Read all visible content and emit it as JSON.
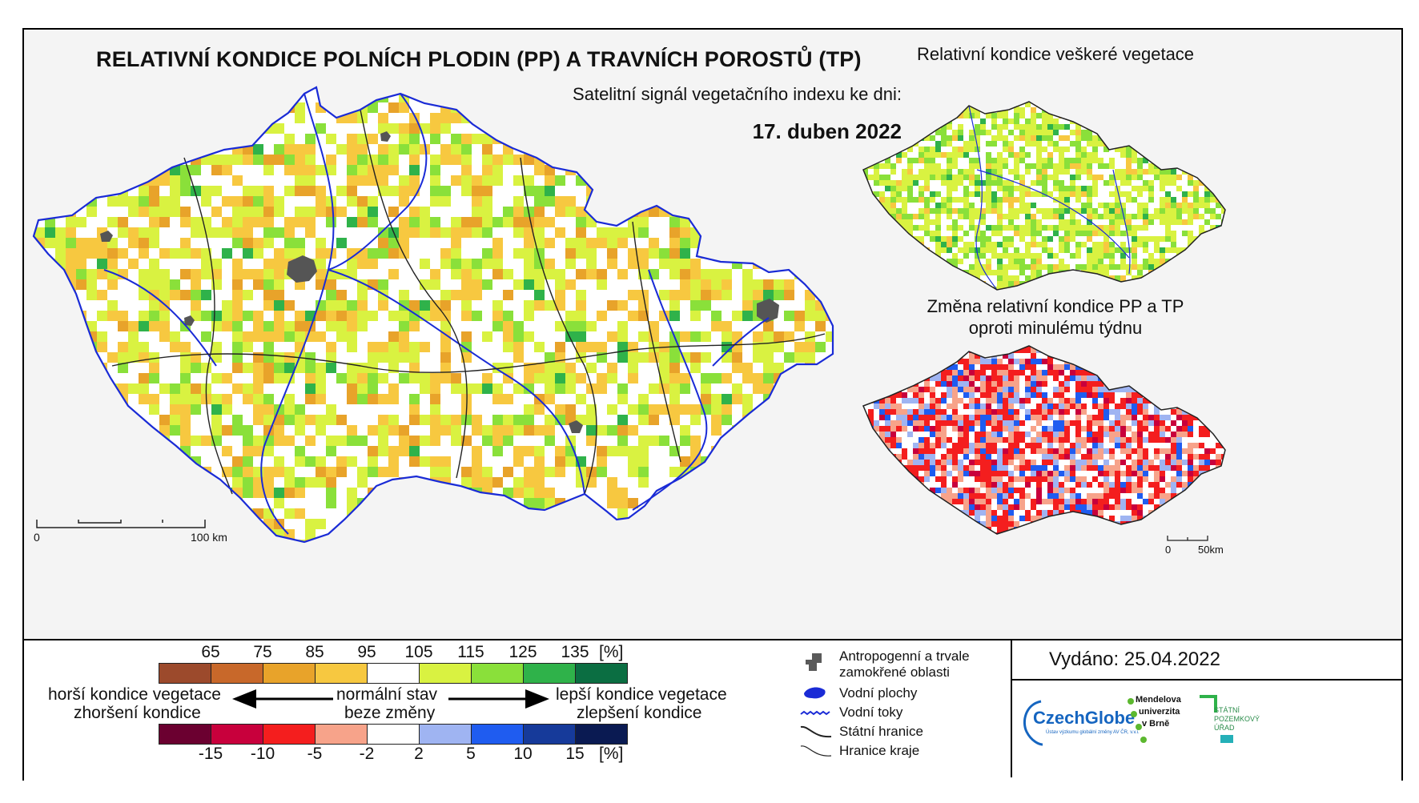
{
  "header": {
    "title": "RELATIVNÍ KONDICE POLNÍCH PLODIN (PP) A TRAVNÍCH POROSTŮ (TP)",
    "subtitle": "Satelitní signál vegetačního indexu ke dni:",
    "date": "17. duben 2022"
  },
  "main_map": {
    "scale_start": "0",
    "scale_end": "100 km"
  },
  "inset_top": {
    "title": "Relativní kondice veškeré vegetace"
  },
  "inset_bottom": {
    "title_line1": "Změna relativní kondice PP a TP",
    "title_line2": "oproti minulému týdnu",
    "scale_start": "0",
    "scale_end": "50km"
  },
  "legend_condition": {
    "ticks": [
      "65",
      "75",
      "85",
      "95",
      "105",
      "115",
      "125",
      "135"
    ],
    "unit": "[%]",
    "colors": [
      "#9c4a2c",
      "#c8682a",
      "#e8a32a",
      "#f7c840",
      "#ffffff",
      "#d9f241",
      "#8ae03a",
      "#2fb24a",
      "#0b6e42"
    ]
  },
  "legend_change": {
    "ticks": [
      "-15",
      "-10",
      "-5",
      "-2",
      "2",
      "5",
      "10",
      "15"
    ],
    "unit": "[%]",
    "colors": [
      "#6b0030",
      "#c8003c",
      "#f41e1e",
      "#f7a38a",
      "#ffffff",
      "#9fb4f2",
      "#1f5cf0",
      "#163a9a",
      "#0a1a52"
    ]
  },
  "legend_text": {
    "worse_line1": "horší kondice vegetace",
    "worse_line2": "zhoršení kondice",
    "normal_line1": "normální stav",
    "normal_line2": "beze změny",
    "better_line1": "lepší kondice vegetace",
    "better_line2": "zlepšení kondice"
  },
  "map_key": {
    "urban_line1": "Antropogenní a trvale",
    "urban_line2": "zamokřené oblasti",
    "water_bodies": "Vodní plochy",
    "rivers": "Vodní toky",
    "state_border": "Státní hranice",
    "region_border": "Hranice kraje"
  },
  "issued": {
    "label": "Vydáno: 25.04.2022"
  },
  "logos": {
    "czechglobe": "CzechGlobe",
    "czechglobe_sub": "Ústav výzkumu globální změny AV ČR, v.v.i.",
    "mendel_line1": "Mendelova",
    "mendel_line2": "univerzita",
    "mendel_line3": "v Brně",
    "spu_line1": "STÁTNÍ",
    "spu_line2": "POZEMKOVÝ",
    "spu_line3": "ÚŘAD"
  }
}
